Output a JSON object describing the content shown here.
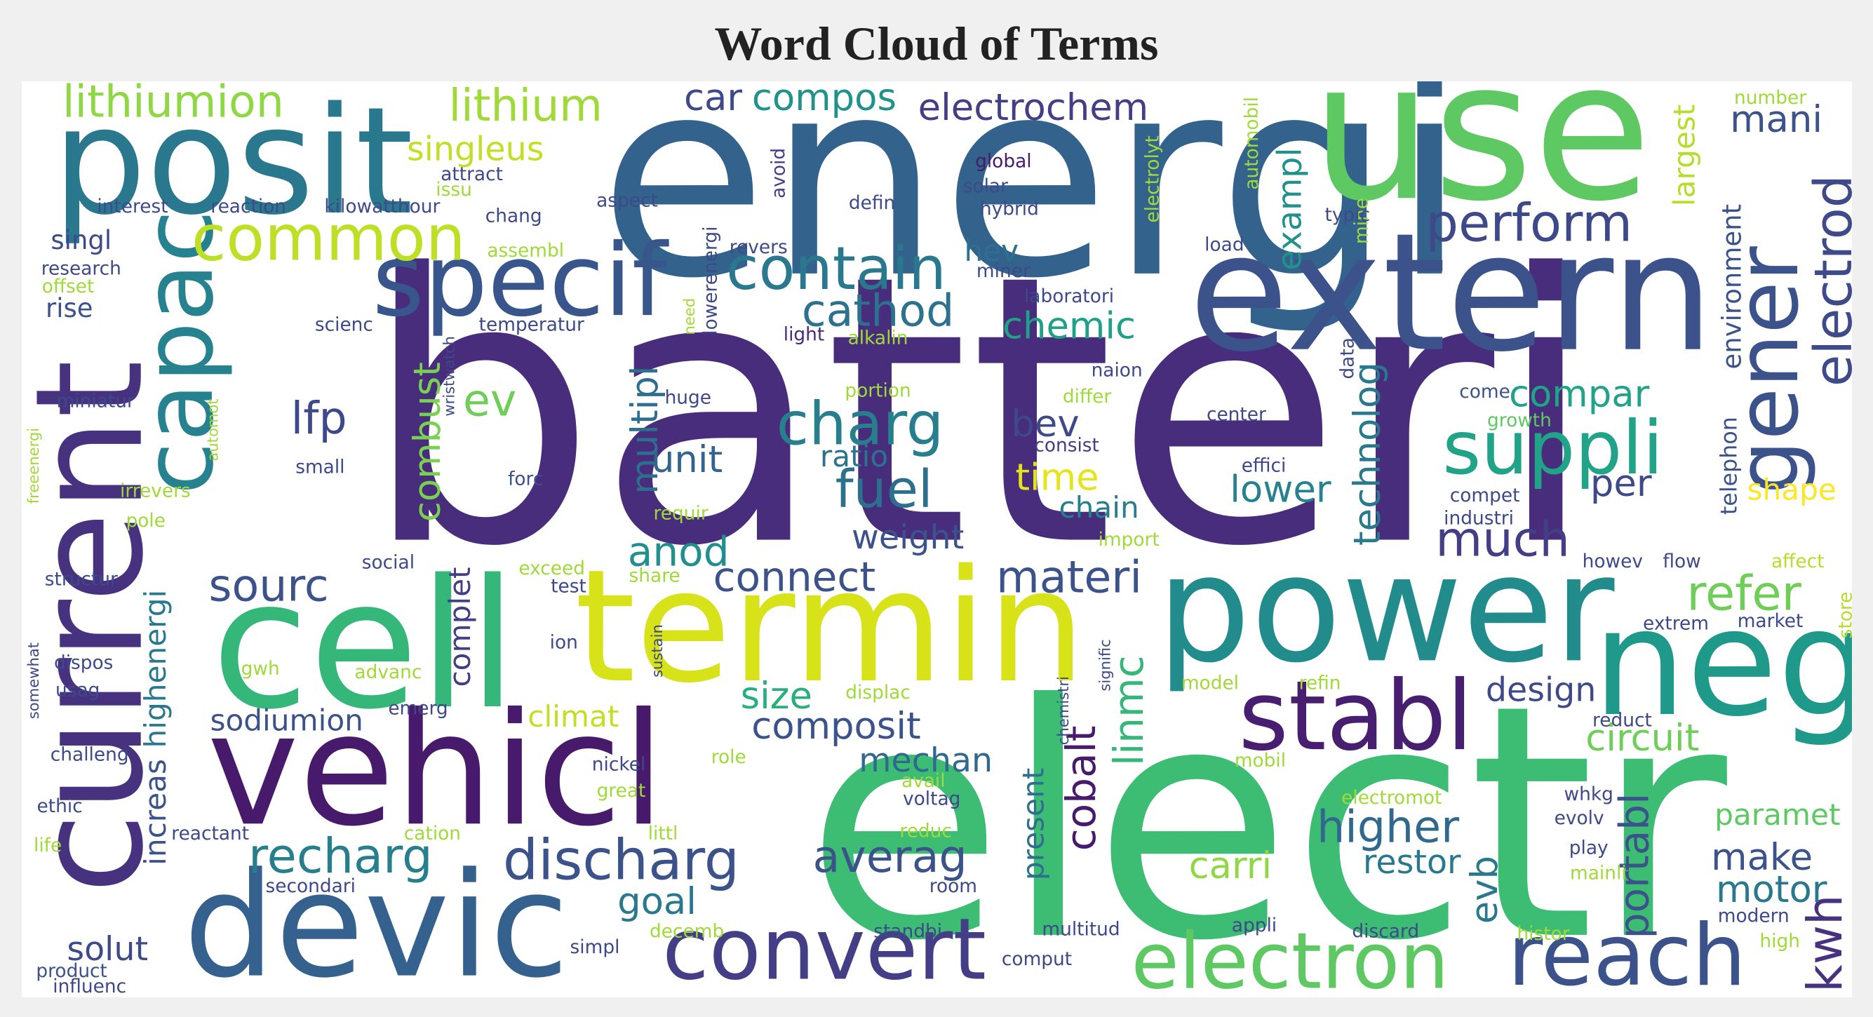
{
  "chart_data": {
    "type": "wordcloud",
    "title": "Word Cloud of Terms",
    "words": [
      {
        "text": "batteri",
        "value": 100,
        "color": "#472d7b"
      },
      {
        "text": "electr",
        "value": 87,
        "color": "#3dbc74"
      },
      {
        "text": "energi",
        "value": 74,
        "color": "#33638d"
      },
      {
        "text": "use",
        "value": 52,
        "color": "#5ec962"
      },
      {
        "text": "posit",
        "value": 40,
        "color": "#2a788e"
      },
      {
        "text": "extern",
        "value": 44,
        "color": "#3b528b"
      },
      {
        "text": "current",
        "value": 40,
        "color": "#46327e"
      },
      {
        "text": "capac",
        "value": 26,
        "color": "#26828e"
      },
      {
        "text": "specif",
        "value": 27,
        "color": "#39568c"
      },
      {
        "text": "common",
        "value": 17,
        "color": "#bddf26"
      },
      {
        "text": "lithiumion",
        "value": 12,
        "color": "#8fd744"
      },
      {
        "text": "lithium",
        "value": 12,
        "color": "#a0da39"
      },
      {
        "text": "singleus",
        "value": 9,
        "color": "#c2df23"
      },
      {
        "text": "cell",
        "value": 48,
        "color": "#35b779"
      },
      {
        "text": "termin",
        "value": 42,
        "color": "#d8e219"
      },
      {
        "text": "power",
        "value": 40,
        "color": "#228c8d"
      },
      {
        "text": "neg",
        "value": 40,
        "color": "#1f9a8a"
      },
      {
        "text": "vehicl",
        "value": 42,
        "color": "#481a6c"
      },
      {
        "text": "devic",
        "value": 39,
        "color": "#34618d"
      },
      {
        "text": "convert",
        "value": 23,
        "color": "#433e85"
      },
      {
        "text": "electron",
        "value": 21,
        "color": "#5ec962"
      },
      {
        "text": "reach",
        "value": 23,
        "color": "#3b528b"
      },
      {
        "text": "kwh",
        "value": 13,
        "color": "#46327e"
      },
      {
        "text": "recharg",
        "value": 13,
        "color": "#277f8e"
      },
      {
        "text": "discharg",
        "value": 15,
        "color": "#3b528b"
      },
      {
        "text": "stabl",
        "value": 26,
        "color": "#481f70"
      },
      {
        "text": "suppli",
        "value": 20,
        "color": "#20a386"
      },
      {
        "text": "gener",
        "value": 23,
        "color": "#3b528b"
      },
      {
        "text": "electrod",
        "value": 14,
        "color": "#3e4a89"
      },
      {
        "text": "perform",
        "value": 14,
        "color": "#3e4989"
      },
      {
        "text": "contain",
        "value": 16,
        "color": "#2a788e"
      },
      {
        "text": "cathod",
        "value": 12,
        "color": "#2c728e"
      },
      {
        "text": "charg",
        "value": 16,
        "color": "#277f8e"
      },
      {
        "text": "fuel",
        "value": 14,
        "color": "#2d708e"
      },
      {
        "text": "lfp",
        "value": 12,
        "color": "#3e4989"
      },
      {
        "text": "ev",
        "value": 12,
        "color": "#6ece58"
      },
      {
        "text": "combust",
        "value": 10,
        "color": "#7ad151"
      },
      {
        "text": "multipl",
        "value": 10,
        "color": "#2e6e8e"
      },
      {
        "text": "unit",
        "value": 10,
        "color": "#32648e"
      },
      {
        "text": "anod",
        "value": 11,
        "color": "#218f8d"
      },
      {
        "text": "sourc",
        "value": 12,
        "color": "#3b528b"
      },
      {
        "text": "compos",
        "value": 10,
        "color": "#20928c"
      },
      {
        "text": "car",
        "value": 10,
        "color": "#3e4989"
      },
      {
        "text": "electrochem",
        "value": 10,
        "color": "#433e85"
      },
      {
        "text": "mani",
        "value": 10,
        "color": "#3b528b"
      },
      {
        "text": "exampl",
        "value": 9,
        "color": "#21918c"
      },
      {
        "text": "hev",
        "value": 8,
        "color": "#2e6e8e"
      },
      {
        "text": "chemic",
        "value": 10,
        "color": "#1fa187"
      },
      {
        "text": "bev",
        "value": 10,
        "color": "#3e4989"
      },
      {
        "text": "ratio",
        "value": 8,
        "color": "#2c728e"
      },
      {
        "text": "time",
        "value": 10,
        "color": "#e5e419"
      },
      {
        "text": "chain",
        "value": 8,
        "color": "#277f8e"
      },
      {
        "text": "weight",
        "value": 9,
        "color": "#3b528b"
      },
      {
        "text": "connect",
        "value": 11,
        "color": "#3b528b"
      },
      {
        "text": "materi",
        "value": 12,
        "color": "#3b528b"
      },
      {
        "text": "linmc",
        "value": 11,
        "color": "#35b779"
      },
      {
        "text": "cobalt",
        "value": 11,
        "color": "#481a6c"
      },
      {
        "text": "size",
        "value": 10,
        "color": "#29af7f"
      },
      {
        "text": "composit",
        "value": 10,
        "color": "#3b528b"
      },
      {
        "text": "climat",
        "value": 8,
        "color": "#c2df23"
      },
      {
        "text": "mechan",
        "value": 9,
        "color": "#31688e"
      },
      {
        "text": "averag",
        "value": 12,
        "color": "#3b528b"
      },
      {
        "text": "goal",
        "value": 10,
        "color": "#2a788e"
      },
      {
        "text": "solut",
        "value": 9,
        "color": "#3e4a89"
      },
      {
        "text": "present",
        "value": 8,
        "color": "#2e6e8e"
      },
      {
        "text": "complet",
        "value": 8,
        "color": "#433e85"
      },
      {
        "text": "highenergi",
        "value": 8,
        "color": "#2a788e"
      },
      {
        "text": "increas",
        "value": 8,
        "color": "#3b528b"
      },
      {
        "text": "sodiumion",
        "value": 8,
        "color": "#3b528b"
      },
      {
        "text": "design",
        "value": 9,
        "color": "#3e4989"
      },
      {
        "text": "circuit",
        "value": 10,
        "color": "#6ece58"
      },
      {
        "text": "compar",
        "value": 10,
        "color": "#20a386"
      },
      {
        "text": "technolog",
        "value": 10,
        "color": "#2a788e"
      },
      {
        "text": "lower",
        "value": 10,
        "color": "#26828e"
      },
      {
        "text": "per",
        "value": 10,
        "color": "#3e4989"
      },
      {
        "text": "much",
        "value": 13,
        "color": "#433e85"
      },
      {
        "text": "refer",
        "value": 13,
        "color": "#6ece58"
      },
      {
        "text": "higher",
        "value": 12,
        "color": "#31688e"
      },
      {
        "text": "restor",
        "value": 9,
        "color": "#2a788e"
      },
      {
        "text": "evb",
        "value": 10,
        "color": "#2a788e"
      },
      {
        "text": "portabl",
        "value": 11,
        "color": "#3b528b"
      },
      {
        "text": "carri",
        "value": 10,
        "color": "#8fd744"
      },
      {
        "text": "make",
        "value": 10,
        "color": "#3b528b"
      },
      {
        "text": "motor",
        "value": 10,
        "color": "#2a788e"
      },
      {
        "text": "paramet",
        "value": 8,
        "color": "#5ec962"
      },
      {
        "text": "shape",
        "value": 8,
        "color": "#fde725"
      },
      {
        "text": "largest",
        "value": 8,
        "color": "#b5de2b"
      },
      {
        "text": "environment",
        "value": 7,
        "color": "#3b528b"
      },
      {
        "text": "telephon",
        "value": 6,
        "color": "#3b528b"
      },
      {
        "text": "number",
        "value": 5,
        "color": "#a0da39"
      },
      {
        "text": "automobil",
        "value": 5,
        "color": "#a0da39"
      },
      {
        "text": "electrolyt",
        "value": 5,
        "color": "#a0da39"
      },
      {
        "text": "mine",
        "value": 5,
        "color": "#a0da39"
      },
      {
        "text": "typic",
        "value": 5,
        "color": "#3e4989"
      },
      {
        "text": "load",
        "value": 5,
        "color": "#3e4989"
      },
      {
        "text": "global",
        "value": 5,
        "color": "#481a6c"
      },
      {
        "text": "solar",
        "value": 5,
        "color": "#3e4989"
      },
      {
        "text": "hybrid",
        "value": 5,
        "color": "#3e4989"
      },
      {
        "text": "defin",
        "value": 5,
        "color": "#3e4989"
      },
      {
        "text": "avoid",
        "value": 5,
        "color": "#433e85"
      },
      {
        "text": "lowerenergi",
        "value": 5,
        "color": "#3e4989"
      },
      {
        "text": "revers",
        "value": 5,
        "color": "#3e4989"
      },
      {
        "text": "miner",
        "value": 5,
        "color": "#3e4989"
      },
      {
        "text": "laboratori",
        "value": 5,
        "color": "#3e4989"
      },
      {
        "text": "light",
        "value": 5,
        "color": "#472d7b"
      },
      {
        "text": "alkalin",
        "value": 5,
        "color": "#a0da39"
      },
      {
        "text": "need",
        "value": 4,
        "color": "#a0da39"
      },
      {
        "text": "data",
        "value": 5,
        "color": "#3e4989"
      },
      {
        "text": "naion",
        "value": 5,
        "color": "#3e4989"
      },
      {
        "text": "portion",
        "value": 5,
        "color": "#a0da39"
      },
      {
        "text": "differ",
        "value": 5,
        "color": "#a0da39"
      },
      {
        "text": "center",
        "value": 5,
        "color": "#3e4989"
      },
      {
        "text": "come",
        "value": 5,
        "color": "#3b528b"
      },
      {
        "text": "growth",
        "value": 5,
        "color": "#5ec962"
      },
      {
        "text": "huge",
        "value": 5,
        "color": "#3e4989"
      },
      {
        "text": "consist",
        "value": 5,
        "color": "#433e85"
      },
      {
        "text": "effici",
        "value": 5,
        "color": "#3e4989"
      },
      {
        "text": "forc",
        "value": 5,
        "color": "#3b528b"
      },
      {
        "text": "requir",
        "value": 5,
        "color": "#a0da39"
      },
      {
        "text": "import",
        "value": 5,
        "color": "#a0da39"
      },
      {
        "text": "compet",
        "value": 5,
        "color": "#3e4989"
      },
      {
        "text": "industri",
        "value": 5,
        "color": "#3e4989"
      },
      {
        "text": "howev",
        "value": 5,
        "color": "#3e4989"
      },
      {
        "text": "flow",
        "value": 5,
        "color": "#3e4989"
      },
      {
        "text": "affect",
        "value": 5,
        "color": "#b5de2b"
      },
      {
        "text": "store",
        "value": 5,
        "color": "#b5de2b"
      },
      {
        "text": "extrem",
        "value": 5,
        "color": "#3e4989"
      },
      {
        "text": "market",
        "value": 5,
        "color": "#3e4989"
      },
      {
        "text": "model",
        "value": 5,
        "color": "#a0da39"
      },
      {
        "text": "refin",
        "value": 5,
        "color": "#a0da39"
      },
      {
        "text": "chemistri",
        "value": 4,
        "color": "#3e4989"
      },
      {
        "text": "signific",
        "value": 4,
        "color": "#3e4989"
      },
      {
        "text": "reduct",
        "value": 5,
        "color": "#3e4989"
      },
      {
        "text": "mobil",
        "value": 5,
        "color": "#a0da39"
      },
      {
        "text": "displac",
        "value": 5,
        "color": "#a0da39"
      },
      {
        "text": "avail",
        "value": 5,
        "color": "#a0da39"
      },
      {
        "text": "voltag",
        "value": 5,
        "color": "#3e4989"
      },
      {
        "text": "reduc",
        "value": 5,
        "color": "#a0da39"
      },
      {
        "text": "electromot",
        "value": 5,
        "color": "#a0da39"
      },
      {
        "text": "whkg",
        "value": 5,
        "color": "#3e4989"
      },
      {
        "text": "evolv",
        "value": 5,
        "color": "#3e4989"
      },
      {
        "text": "play",
        "value": 5,
        "color": "#3e4989"
      },
      {
        "text": "mainli",
        "value": 5,
        "color": "#a0da39"
      },
      {
        "text": "room",
        "value": 5,
        "color": "#3e4989"
      },
      {
        "text": "appli",
        "value": 5,
        "color": "#3e4989"
      },
      {
        "text": "discard",
        "value": 5,
        "color": "#3e4989"
      },
      {
        "text": "histor",
        "value": 5,
        "color": "#a0da39"
      },
      {
        "text": "modern",
        "value": 5,
        "color": "#3e4989"
      },
      {
        "text": "high",
        "value": 5,
        "color": "#a0da39"
      },
      {
        "text": "multitud",
        "value": 5,
        "color": "#3e4989"
      },
      {
        "text": "comput",
        "value": 5,
        "color": "#3e4989"
      },
      {
        "text": "standbi",
        "value": 5,
        "color": "#3e4989"
      },
      {
        "text": "decemb",
        "value": 5,
        "color": "#a0da39"
      },
      {
        "text": "simpl",
        "value": 5,
        "color": "#3e4989"
      },
      {
        "text": "littl",
        "value": 5,
        "color": "#a0da39"
      },
      {
        "text": "great",
        "value": 5,
        "color": "#a0da39"
      },
      {
        "text": "nickel",
        "value": 5,
        "color": "#3e4989"
      },
      {
        "text": "role",
        "value": 5,
        "color": "#a0da39"
      },
      {
        "text": "cation",
        "value": 5,
        "color": "#a0da39"
      },
      {
        "text": "reactant",
        "value": 5,
        "color": "#3e4989"
      },
      {
        "text": "life",
        "value": 5,
        "color": "#a0da39"
      },
      {
        "text": "secondari",
        "value": 5,
        "color": "#3e4989"
      },
      {
        "text": "product",
        "value": 5,
        "color": "#3b528b"
      },
      {
        "text": "influenc",
        "value": 5,
        "color": "#3e4989"
      },
      {
        "text": "ethic",
        "value": 5,
        "color": "#3e4989"
      },
      {
        "text": "challeng",
        "value": 5,
        "color": "#3e4989"
      },
      {
        "text": "somewhat",
        "value": 4,
        "color": "#3e4989"
      },
      {
        "text": "usag",
        "value": 5,
        "color": "#3e4989"
      },
      {
        "text": "dispos",
        "value": 5,
        "color": "#3e4989"
      },
      {
        "text": "structur",
        "value": 5,
        "color": "#3e4989"
      },
      {
        "text": "freeenergi",
        "value": 4,
        "color": "#a0da39"
      },
      {
        "text": "pole",
        "value": 5,
        "color": "#a0da39"
      },
      {
        "text": "irrevers",
        "value": 5,
        "color": "#a0da39"
      },
      {
        "text": "automot",
        "value": 4,
        "color": "#a0da39"
      },
      {
        "text": "small",
        "value": 5,
        "color": "#3e4989"
      },
      {
        "text": "wristwatch",
        "value": 4,
        "color": "#3e4989"
      },
      {
        "text": "miniatur",
        "value": 5,
        "color": "#3e4989"
      },
      {
        "text": "scienc",
        "value": 5,
        "color": "#3e4989"
      },
      {
        "text": "temperatur",
        "value": 5,
        "color": "#3e4989"
      },
      {
        "text": "rise",
        "value": 7,
        "color": "#3b528b"
      },
      {
        "text": "offset",
        "value": 5,
        "color": "#a0da39"
      },
      {
        "text": "research",
        "value": 5,
        "color": "#3e4989"
      },
      {
        "text": "singl",
        "value": 7,
        "color": "#3e4989"
      },
      {
        "text": "assembl",
        "value": 5,
        "color": "#a0da39"
      },
      {
        "text": "interest",
        "value": 5,
        "color": "#3e4989"
      },
      {
        "text": "reaction",
        "value": 5,
        "color": "#3e4989"
      },
      {
        "text": "kilowatthour",
        "value": 5,
        "color": "#3e4989"
      },
      {
        "text": "issu",
        "value": 5,
        "color": "#a0da39"
      },
      {
        "text": "attract",
        "value": 5,
        "color": "#3e4989"
      },
      {
        "text": "chang",
        "value": 5,
        "color": "#3e4989"
      },
      {
        "text": "aspect",
        "value": 5,
        "color": "#3e4989"
      },
      {
        "text": "social",
        "value": 5,
        "color": "#3e4989"
      },
      {
        "text": "exceed",
        "value": 5,
        "color": "#a0da39"
      },
      {
        "text": "test",
        "value": 5,
        "color": "#3e4989"
      },
      {
        "text": "share",
        "value": 5,
        "color": "#a0da39"
      },
      {
        "text": "ion",
        "value": 5,
        "color": "#3e4989"
      },
      {
        "text": "sustain",
        "value": 4,
        "color": "#3e4989"
      },
      {
        "text": "advanc",
        "value": 5,
        "color": "#a0da39"
      },
      {
        "text": "gwh",
        "value": 5,
        "color": "#a0da39"
      },
      {
        "text": "emerg",
        "value": 5,
        "color": "#3e4989"
      }
    ]
  }
}
